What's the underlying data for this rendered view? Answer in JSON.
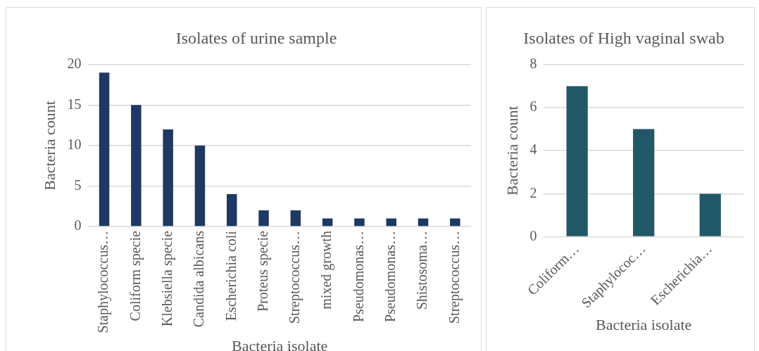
{
  "chart_data": [
    {
      "type": "bar",
      "title": "Isolates of urine sample",
      "xlabel": "Bacteria isolate",
      "ylabel": "Bacteria count",
      "categories": [
        "Staphylococcus…",
        "Coliform specie",
        "Klebsiella specie",
        "Candida albicans",
        "Escherichia coli",
        "Proteus specie",
        "Streptococcus…",
        "mixed growth",
        "Pseudomonas…",
        "Pseudomonas…",
        "Shistosoma…",
        "Streptococcus…"
      ],
      "values": [
        19,
        15,
        12,
        10,
        4,
        2,
        2,
        1,
        1,
        1,
        1,
        1
      ],
      "color": "#1f3864",
      "ylim": [
        0,
        20
      ],
      "yticks": [
        0,
        5,
        10,
        15,
        20
      ],
      "grid": "y",
      "legend": false
    },
    {
      "type": "bar",
      "title": "Isolates of High vaginal swab",
      "xlabel": "Bacteria isolate",
      "ylabel": "Bacteria count",
      "categories": [
        "Coliform…",
        "Staphylococ…",
        "Escherichia…"
      ],
      "values": [
        7,
        5,
        2
      ],
      "color": "#215868",
      "ylim": [
        0,
        8
      ],
      "yticks": [
        0,
        2,
        4,
        6,
        8
      ],
      "grid": "y",
      "legend": false
    }
  ]
}
